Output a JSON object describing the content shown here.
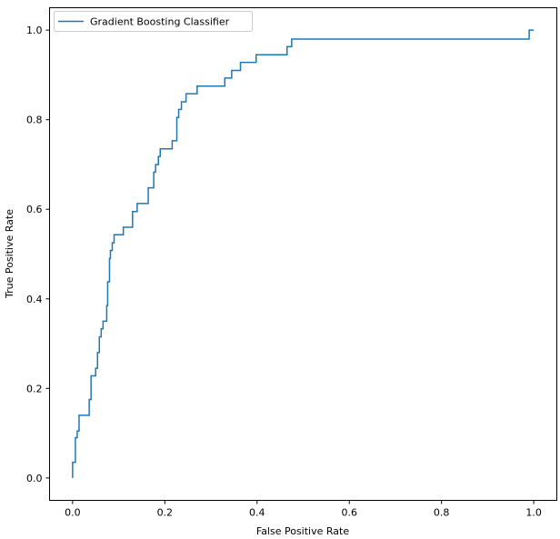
{
  "chart_data": {
    "type": "line",
    "title": "",
    "xlabel": "False Positive Rate",
    "ylabel": "True Positive Rate",
    "xlim": [
      -0.05,
      1.05
    ],
    "ylim": [
      -0.05,
      1.05
    ],
    "xticks": [
      0.0,
      0.2,
      0.4,
      0.6,
      0.8,
      1.0
    ],
    "yticks": [
      0.0,
      0.2,
      0.4,
      0.6,
      0.8,
      1.0
    ],
    "xtick_labels": [
      "0.0",
      "0.2",
      "0.4",
      "0.6",
      "0.8",
      "1.0"
    ],
    "ytick_labels": [
      "0.0",
      "0.2",
      "0.4",
      "0.6",
      "0.8",
      "1.0"
    ],
    "grid": false,
    "legend_position": "top-left",
    "series": [
      {
        "name": "Gradient Boosting Classifier",
        "color": "#1f77b4",
        "x": [
          0.0,
          0.0,
          0.006,
          0.006,
          0.01,
          0.01,
          0.014,
          0.014,
          0.02,
          0.02,
          0.036,
          0.036,
          0.04,
          0.04,
          0.05,
          0.05,
          0.054,
          0.054,
          0.058,
          0.058,
          0.062,
          0.062,
          0.066,
          0.066,
          0.074,
          0.074,
          0.076,
          0.076,
          0.08,
          0.08,
          0.082,
          0.082,
          0.086,
          0.086,
          0.09,
          0.09,
          0.096,
          0.096,
          0.11,
          0.11,
          0.13,
          0.13,
          0.14,
          0.14,
          0.145,
          0.145,
          0.164,
          0.164,
          0.176,
          0.176,
          0.18,
          0.18,
          0.186,
          0.186,
          0.19,
          0.19,
          0.194,
          0.194,
          0.216,
          0.216,
          0.226,
          0.226,
          0.23,
          0.23,
          0.236,
          0.236,
          0.246,
          0.246,
          0.27,
          0.27,
          0.33,
          0.33,
          0.345,
          0.345,
          0.364,
          0.364,
          0.398,
          0.398,
          0.465,
          0.465,
          0.475,
          0.475,
          0.99,
          0.99,
          1.0
        ],
        "y": [
          0.0,
          0.035,
          0.035,
          0.09,
          0.09,
          0.105,
          0.105,
          0.14,
          0.14,
          0.14,
          0.14,
          0.175,
          0.175,
          0.228,
          0.228,
          0.245,
          0.245,
          0.28,
          0.28,
          0.315,
          0.315,
          0.333,
          0.333,
          0.35,
          0.35,
          0.385,
          0.385,
          0.438,
          0.438,
          0.49,
          0.49,
          0.508,
          0.508,
          0.525,
          0.525,
          0.543,
          0.543,
          0.543,
          0.543,
          0.56,
          0.56,
          0.595,
          0.595,
          0.613,
          0.613,
          0.613,
          0.613,
          0.648,
          0.648,
          0.683,
          0.683,
          0.7,
          0.7,
          0.718,
          0.718,
          0.735,
          0.735,
          0.735,
          0.735,
          0.753,
          0.753,
          0.805,
          0.805,
          0.823,
          0.823,
          0.84,
          0.84,
          0.858,
          0.858,
          0.875,
          0.875,
          0.893,
          0.893,
          0.91,
          0.91,
          0.928,
          0.928,
          0.945,
          0.945,
          0.963,
          0.963,
          0.98,
          0.98,
          1.0,
          1.0
        ]
      }
    ]
  }
}
